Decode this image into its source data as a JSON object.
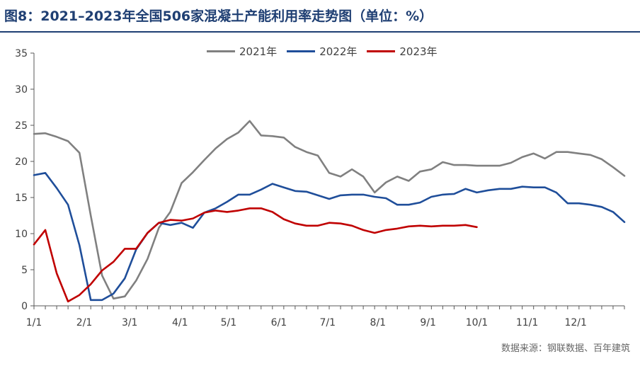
{
  "title": "图8：2021–2023年全国506家混凝土产能利用率走势图（单位：%）",
  "source": "数据来源：钢联数据、百年建筑",
  "colors": {
    "title": "#1f3f73",
    "2021": "#808080",
    "2022": "#1f4e9a",
    "2023": "#c00000"
  },
  "chart_data": {
    "type": "line",
    "title": "图8：2021–2023年全国506家混凝土产能利用率走势图（单位：%）",
    "xlabel": "",
    "ylabel": "",
    "ylim": [
      0,
      35
    ],
    "yticks": [
      0,
      5,
      10,
      15,
      20,
      25,
      30,
      35
    ],
    "xlim": [
      0,
      52
    ],
    "xticks": [
      {
        "label": "1/1",
        "x": 0
      },
      {
        "label": "2/1",
        "x": 4.43
      },
      {
        "label": "3/1",
        "x": 8.43
      },
      {
        "label": "4/1",
        "x": 12.86
      },
      {
        "label": "5/1",
        "x": 17.14
      },
      {
        "label": "6/1",
        "x": 21.57
      },
      {
        "label": "7/1",
        "x": 25.86
      },
      {
        "label": "8/1",
        "x": 30.29
      },
      {
        "label": "9/1",
        "x": 34.71
      },
      {
        "label": "10/1",
        "x": 39.0
      },
      {
        "label": "11/1",
        "x": 43.43
      },
      {
        "label": "12/1",
        "x": 47.71
      }
    ],
    "grid": false,
    "legend": "top-center",
    "series": [
      {
        "name": "2021年",
        "color": "#808080",
        "x": [
          0,
          1,
          2,
          3,
          4,
          5,
          6,
          7,
          8,
          9,
          10,
          11,
          12,
          13,
          14,
          15,
          16,
          17,
          18,
          19,
          20,
          21,
          22,
          23,
          24,
          25,
          26,
          27,
          28,
          29,
          30,
          31,
          32,
          33,
          34,
          35,
          36,
          37,
          38,
          39,
          40,
          41,
          42,
          43,
          44,
          45,
          46,
          47,
          48,
          49,
          50,
          51,
          52
        ],
        "values": [
          23.8,
          23.9,
          23.4,
          22.8,
          21.2,
          12.5,
          4.2,
          1.0,
          1.3,
          3.5,
          6.5,
          10.8,
          13.0,
          17.0,
          18.5,
          20.2,
          21.8,
          23.1,
          24.0,
          25.6,
          23.6,
          23.5,
          23.3,
          22.0,
          21.3,
          20.8,
          18.4,
          17.9,
          18.9,
          17.9,
          15.7,
          17.1,
          17.9,
          17.3,
          18.6,
          18.9,
          19.9,
          19.5,
          19.5,
          19.4,
          19.4,
          19.4,
          19.8,
          20.6,
          21.1,
          20.4,
          21.3,
          21.3,
          21.1,
          20.9,
          20.3,
          19.2,
          18.0
        ]
      },
      {
        "name": "2022年",
        "color": "#1f4e9a",
        "x": [
          0,
          1,
          2,
          3,
          4,
          5,
          6,
          7,
          8,
          9,
          10,
          11,
          12,
          13,
          14,
          15,
          16,
          17,
          18,
          19,
          20,
          21,
          22,
          23,
          24,
          25,
          26,
          27,
          28,
          29,
          30,
          31,
          32,
          33,
          34,
          35,
          36,
          37,
          38,
          39,
          40,
          41,
          42,
          43,
          44,
          45,
          46,
          47,
          48,
          49,
          50,
          51,
          52
        ],
        "values": [
          18.1,
          18.4,
          16.3,
          14.0,
          8.4,
          0.8,
          0.8,
          1.7,
          3.8,
          7.8,
          10.1,
          11.5,
          11.2,
          11.5,
          10.8,
          12.9,
          13.5,
          14.4,
          15.4,
          15.4,
          16.1,
          16.9,
          16.4,
          15.9,
          15.8,
          15.3,
          14.8,
          15.3,
          15.4,
          15.4,
          15.1,
          14.9,
          14.0,
          14.0,
          14.3,
          15.1,
          15.4,
          15.5,
          16.2,
          15.7,
          16.0,
          16.2,
          16.2,
          16.5,
          16.4,
          16.4,
          15.7,
          14.2,
          14.2,
          14.0,
          13.7,
          13.0,
          11.6
        ]
      },
      {
        "name": "2023年",
        "color": "#c00000",
        "x": [
          0,
          1,
          2,
          3,
          4,
          5,
          6,
          7,
          8,
          9,
          10,
          11,
          12,
          13,
          14,
          15,
          16,
          17,
          18,
          19,
          20,
          21,
          22,
          23,
          24,
          25,
          26,
          27,
          28,
          29,
          30,
          31,
          32,
          33,
          34,
          35,
          36,
          37,
          38,
          39
        ],
        "values": [
          8.5,
          10.5,
          4.5,
          0.6,
          1.5,
          3.0,
          4.9,
          6.1,
          7.9,
          7.9,
          10.1,
          11.5,
          11.9,
          11.8,
          12.1,
          12.9,
          13.2,
          13.0,
          13.2,
          13.5,
          13.5,
          13.0,
          12.0,
          11.4,
          11.1,
          11.1,
          11.5,
          11.4,
          11.1,
          10.5,
          10.1,
          10.5,
          10.7,
          11.0,
          11.1,
          11.0,
          11.1,
          11.1,
          11.2,
          10.9
        ]
      }
    ]
  }
}
